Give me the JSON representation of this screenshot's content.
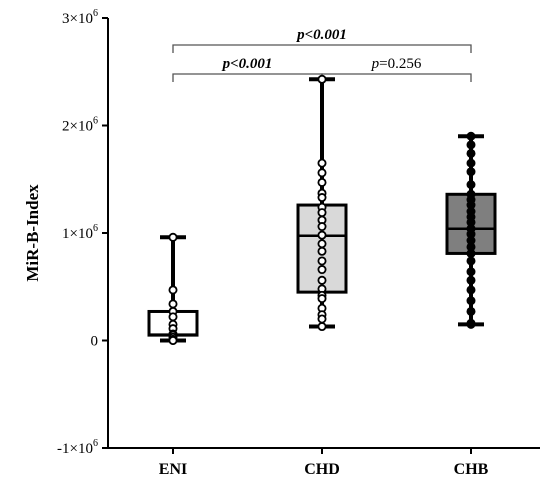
{
  "chart_data": {
    "type": "box",
    "ylabel": "MiR-B-Index",
    "xlabel": "",
    "y_scale_exponent": 6,
    "ylim": [
      -1000000,
      3000000
    ],
    "yticks": [
      {
        "value": -1000000,
        "label": "-1×10",
        "exp": "6"
      },
      {
        "value": 0,
        "label": "0",
        "exp": ""
      },
      {
        "value": 1000000,
        "label": "1×10",
        "exp": "6"
      },
      {
        "value": 2000000,
        "label": "2×10",
        "exp": "6"
      },
      {
        "value": 3000000,
        "label": "3×10",
        "exp": "6"
      }
    ],
    "categories": [
      "ENI",
      "CHD",
      "CHB"
    ],
    "boxes": [
      {
        "category": "ENI",
        "fill": "#ffffff",
        "point_fill": "#ffffff",
        "min": 0,
        "q1": 50000,
        "median": 55000,
        "q3": 270000,
        "max": 960000,
        "points": [
          960000,
          470000,
          340000,
          270000,
          220000,
          150000,
          110000,
          60000,
          50000,
          30000,
          10000,
          0,
          0
        ]
      },
      {
        "category": "CHD",
        "fill": "#d9d9d9",
        "point_fill": "#ffffff",
        "min": 130000,
        "q1": 450000,
        "median": 975000,
        "q3": 1260000,
        "max": 2430000,
        "points": [
          2430000,
          1650000,
          1560000,
          1470000,
          1370000,
          1330000,
          1240000,
          1190000,
          1120000,
          1060000,
          980000,
          900000,
          830000,
          740000,
          660000,
          560000,
          480000,
          420000,
          390000,
          300000,
          240000,
          200000,
          130000
        ]
      },
      {
        "category": "CHB",
        "fill": "#7f7f7f",
        "point_fill": "#000000",
        "min": 150000,
        "q1": 810000,
        "median": 1040000,
        "q3": 1360000,
        "max": 1900000,
        "points": [
          1900000,
          1820000,
          1740000,
          1650000,
          1570000,
          1450000,
          1360000,
          1310000,
          1260000,
          1200000,
          1150000,
          1100000,
          1040000,
          990000,
          930000,
          870000,
          810000,
          740000,
          640000,
          560000,
          470000,
          370000,
          270000,
          160000,
          150000
        ]
      }
    ],
    "comparisons": [
      {
        "from": "ENI",
        "to": "CHB",
        "label_p": "p",
        "label_rest": "<0.001",
        "bold": true,
        "level": 2
      },
      {
        "from": "ENI",
        "to": "CHD",
        "label_p": "p",
        "label_rest": "<0.001",
        "bold": true,
        "level": 1
      },
      {
        "from": "CHD",
        "to": "CHB",
        "label_p": "p",
        "label_rest": "=0.256",
        "bold": false,
        "level": 1
      }
    ]
  }
}
